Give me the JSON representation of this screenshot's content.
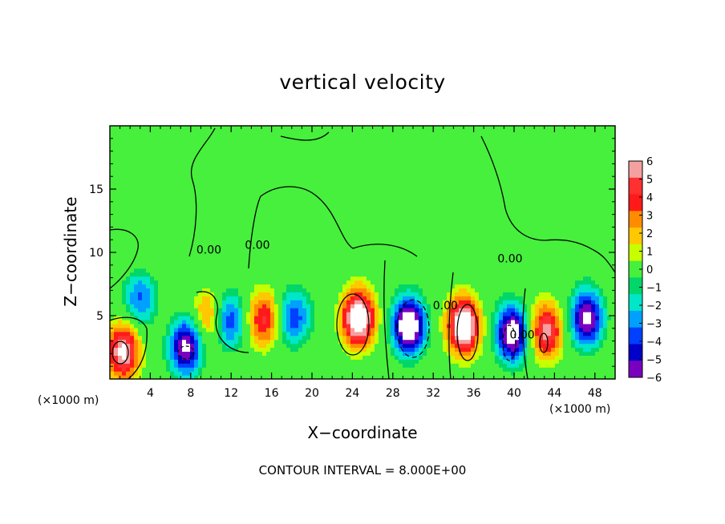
{
  "chart_data": {
    "type": "heatmap",
    "title": "vertical velocity",
    "xlabel": "X−coordinate",
    "ylabel": "Z−coordinate",
    "x_unit_left": "(×1000 m)",
    "x_unit_right": "(×1000 m)",
    "footer": "CONTOUR INTERVAL = 8.000E+00",
    "xlim": [
      0,
      50
    ],
    "ylim": [
      0,
      20
    ],
    "x_ticks": [
      4,
      8,
      12,
      16,
      20,
      24,
      28,
      32,
      36,
      40,
      44,
      48
    ],
    "y_ticks": [
      5,
      10,
      15
    ],
    "colorbar": {
      "range": [
        -6,
        6
      ],
      "labels": [
        "6",
        "5",
        "4",
        "3",
        "2",
        "1",
        "0",
        "−1",
        "−2",
        "−3",
        "−4",
        "−5",
        "−6"
      ],
      "colors": [
        "#f4a0a0",
        "#ff3030",
        "#ff1a1a",
        "#ff8c00",
        "#ffc800",
        "#c8ff00",
        "#46f03c",
        "#00d66a",
        "#00e6c8",
        "#00a0ff",
        "#0040ff",
        "#0000c8",
        "#7a00c0"
      ]
    },
    "contour_labels": [
      {
        "text": "0.00",
        "x": 9.8,
        "y": 9.9
      },
      {
        "text": "0.00",
        "x": 14.6,
        "y": 10.3
      },
      {
        "text": "0.00",
        "x": 33.2,
        "y": 5.5
      },
      {
        "text": "0.00",
        "x": 40.8,
        "y": 3.2
      },
      {
        "text": "0.00",
        "x": 39.6,
        "y": 9.2
      }
    ],
    "features": [
      {
        "x": 1.3,
        "z": 2.2,
        "w": 7.0
      },
      {
        "x": 7.5,
        "z": 2.6,
        "w": -7.0
      },
      {
        "x": 11.8,
        "z": 4.6,
        "w": -4.2
      },
      {
        "x": 15.2,
        "z": 4.7,
        "w": 4.6
      },
      {
        "x": 18.2,
        "z": 4.9,
        "w": -4.2
      },
      {
        "x": 24.6,
        "z": 4.8,
        "w": 9.0
      },
      {
        "x": 29.6,
        "z": 4.2,
        "w": -9.0
      },
      {
        "x": 35.0,
        "z": 4.2,
        "w": 9.0
      },
      {
        "x": 39.8,
        "z": 3.6,
        "w": -8.0
      },
      {
        "x": 43.2,
        "z": 3.8,
        "w": 6.0
      },
      {
        "x": 47.2,
        "z": 4.8,
        "w": -7.0
      },
      {
        "x": 3.0,
        "z": 6.4,
        "w": -3.5
      },
      {
        "x": 9.8,
        "z": 5.0,
        "w": 3.0
      }
    ]
  }
}
